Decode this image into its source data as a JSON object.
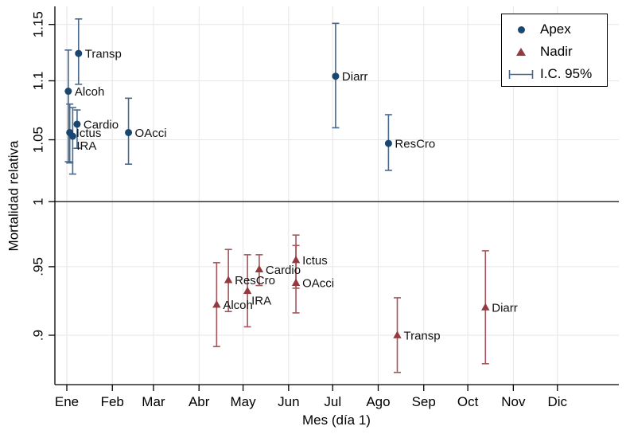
{
  "chart_data": {
    "type": "scatter",
    "title": "",
    "xlabel": "Mes (día 1)",
    "ylabel": "Mortalidad relativa",
    "yscale": "log",
    "ylim": [
      0.866,
      1.166
    ],
    "grid": true,
    "reference_line_y": 1,
    "legend_position": "top-right",
    "x_ticks": [
      {
        "label": "Ene",
        "day_of_year": 1
      },
      {
        "label": "Feb",
        "day_of_year": 32
      },
      {
        "label": "Mar",
        "day_of_year": 60
      },
      {
        "label": "Abr",
        "day_of_year": 91
      },
      {
        "label": "May",
        "day_of_year": 121
      },
      {
        "label": "Jun",
        "day_of_year": 152
      },
      {
        "label": "Jul",
        "day_of_year": 182
      },
      {
        "label": "Ago",
        "day_of_year": 213
      },
      {
        "label": "Sep",
        "day_of_year": 244
      },
      {
        "label": "Oct",
        "day_of_year": 274
      },
      {
        "label": "Nov",
        "day_of_year": 305
      },
      {
        "label": "Dic",
        "day_of_year": 335
      }
    ],
    "y_ticks": [
      {
        "label": "1.15",
        "value": 1.15
      },
      {
        "label": "1.1",
        "value": 1.1
      },
      {
        "label": "1.05",
        "value": 1.05
      },
      {
        "label": "1",
        "value": 1.0
      },
      {
        "label": ".95",
        "value": 0.95
      },
      {
        "label": ".9",
        "value": 0.9
      }
    ],
    "legend": {
      "entries": [
        {
          "label": "Apex",
          "symbol": "circle"
        },
        {
          "label": "Nadir",
          "symbol": "triangle"
        },
        {
          "label": "I.C. 95%",
          "symbol": "ci-bar"
        }
      ]
    },
    "colors": {
      "apex": "#1a476f",
      "apex_ci": "#47688c",
      "nadir": "#943a3e",
      "nadir_ci": "#a3565b",
      "grid": "#e6e6e6",
      "axis": "#000000",
      "reference_line": "#303030"
    },
    "series": [
      {
        "name": "Apex",
        "marker": "circle",
        "color": "#1a476f",
        "ci_color": "#47688c",
        "points": [
          {
            "label": "Alcoh",
            "date": "2 Ene",
            "day_of_year": 2,
            "value": 1.091,
            "ci_low": 1.032,
            "ci_high": 1.127,
            "label_pos": "r"
          },
          {
            "label": "Transp",
            "date": "9 Ene",
            "day_of_year": 9,
            "value": 1.124,
            "ci_low": 1.097,
            "ci_high": 1.155,
            "label_pos": "r"
          },
          {
            "label": "Cardio",
            "date": "8 Ene",
            "day_of_year": 8,
            "value": 1.063,
            "ci_low": 1.043,
            "ci_high": 1.075,
            "label_pos": "r"
          },
          {
            "label": "Ictus",
            "date": "3 Ene",
            "day_of_year": 3,
            "value": 1.056,
            "ci_low": 1.031,
            "ci_high": 1.08,
            "label_pos": "r"
          },
          {
            "label": "IRA",
            "date": "5 Ene",
            "day_of_year": 5,
            "value": 1.053,
            "ci_low": 1.022,
            "ci_high": 1.077,
            "label_pos": "br"
          },
          {
            "label": "OAcci",
            "date": "12 Feb",
            "day_of_year": 43,
            "value": 1.056,
            "ci_low": 1.03,
            "ci_high": 1.085,
            "label_pos": "r"
          },
          {
            "label": "Diarr",
            "date": "3 Jul",
            "day_of_year": 184,
            "value": 1.104,
            "ci_low": 1.06,
            "ci_high": 1.151,
            "label_pos": "r"
          },
          {
            "label": "ResCro",
            "date": "8 Ago",
            "day_of_year": 220,
            "value": 1.047,
            "ci_low": 1.025,
            "ci_high": 1.071,
            "label_pos": "r"
          }
        ]
      },
      {
        "name": "Nadir",
        "marker": "triangle",
        "color": "#943a3e",
        "ci_color": "#a3565b",
        "points": [
          {
            "label": "Alcoh",
            "date": "13 Abr",
            "day_of_year": 103,
            "value": 0.922,
            "ci_low": 0.892,
            "ci_high": 0.953,
            "label_pos": "r"
          },
          {
            "label": "ResCro",
            "date": "21 Abr",
            "day_of_year": 111,
            "value": 0.94,
            "ci_low": 0.917,
            "ci_high": 0.963,
            "label_pos": "r"
          },
          {
            "label": "IRA",
            "date": "4 May",
            "day_of_year": 124,
            "value": 0.932,
            "ci_low": 0.906,
            "ci_high": 0.959,
            "label_pos": "br"
          },
          {
            "label": "Cardio",
            "date": "12 May",
            "day_of_year": 132,
            "value": 0.948,
            "ci_low": 0.936,
            "ci_high": 0.959,
            "label_pos": "r"
          },
          {
            "label": "Ictus",
            "date": "6 Jun",
            "day_of_year": 157,
            "value": 0.955,
            "ci_low": 0.934,
            "ci_high": 0.974,
            "label_pos": "r"
          },
          {
            "label": "OAcci",
            "date": "6 Jun",
            "day_of_year": 157,
            "value": 0.938,
            "ci_low": 0.916,
            "ci_high": 0.966,
            "label_pos": "r"
          },
          {
            "label": "Transp",
            "date": "14 Ago",
            "day_of_year": 226,
            "value": 0.9,
            "ci_low": 0.874,
            "ci_high": 0.927,
            "label_pos": "r"
          },
          {
            "label": "Diarr",
            "date": "13 Oct",
            "day_of_year": 286,
            "value": 0.92,
            "ci_low": 0.88,
            "ci_high": 0.962,
            "label_pos": "r"
          }
        ]
      }
    ]
  }
}
